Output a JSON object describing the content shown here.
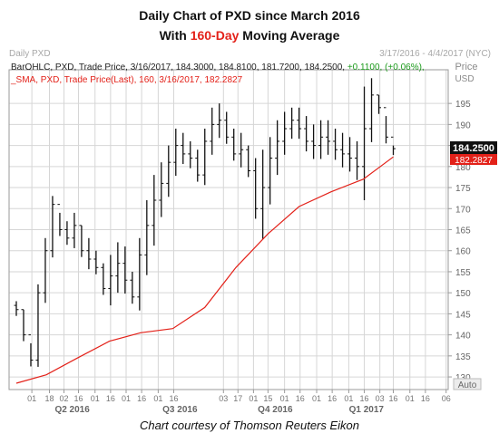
{
  "header": {
    "title_line1": "Daily Chart of PXD since March 2016",
    "title_line2_pre": "With ",
    "title_line2_highlight": "160-Day",
    "title_line2_post": " Moving Average"
  },
  "chart_header": {
    "left_label": "Daily PXD",
    "date_range": "3/17/2016 - 4/4/2017 (NYC)",
    "axis_caption": "Price",
    "axis_unit": "USD",
    "corner_label": "Auto"
  },
  "legend": {
    "ohlc_line": "BarOHLC, PXD, Trade Price, 3/16/2017, 184.3000, 184.8100, 181.7200, 184.2500,",
    "ohlc_change": "+0.1100, (+0.06%),",
    "sma_line": "_SMA, PXD, Trade Price(Last), 160, 3/16/2017, 182.2827"
  },
  "price_tags": {
    "last": "184.2500",
    "sma": "182.2827"
  },
  "caption": "Chart courtesy of Thomson Reuters Eikon",
  "colors": {
    "price_bars": "#111111",
    "sma_line": "#e32119",
    "grid": "#d6d6d6",
    "change_positive": "#1a9a1a",
    "title_highlight": "#e32119"
  },
  "chart_data": {
    "type": "line",
    "title": "Daily Chart of PXD since March 2016",
    "ylabel": "Price USD",
    "ylim": [
      127,
      203
    ],
    "y_ticks": [
      130,
      135,
      140,
      145,
      150,
      155,
      160,
      165,
      170,
      175,
      180,
      185,
      190,
      195
    ],
    "x_tick_labels": [
      "01",
      "18",
      "02",
      "16",
      "01",
      "16",
      "01",
      "16",
      "01",
      "16",
      "03",
      "17",
      "01",
      "15",
      "01",
      "16",
      "01",
      "16",
      "01",
      "16",
      "03",
      "16",
      "01",
      "16",
      "06"
    ],
    "x_tick_dates": [
      "2016-04-01",
      "2016-04-18",
      "2016-05-02",
      "2016-05-16",
      "2016-06-01",
      "2016-06-16",
      "2016-07-01",
      "2016-07-16",
      "2016-08-01",
      "2016-08-16",
      "2016-10-03",
      "2016-10-17",
      "2016-11-01",
      "2016-11-15",
      "2016-12-01",
      "2016-12-16",
      "2017-01-01",
      "2017-01-16",
      "2017-02-01",
      "2017-02-16",
      "2017-03-03",
      "2017-03-16",
      "2017-04-01",
      "2017-04-16",
      "2017-05-06"
    ],
    "period_labels": [
      "Q2 2016",
      "Q3 2016",
      "Q4 2016",
      "Q1 2017"
    ],
    "period_dates": [
      "2016-05-10",
      "2016-08-22",
      "2016-11-22",
      "2017-02-18"
    ],
    "grid": true,
    "series": [
      {
        "type": "ohlc",
        "x": [
          "2016-03-17",
          "2016-03-24",
          "2016-03-31",
          "2016-04-07",
          "2016-04-14",
          "2016-04-21",
          "2016-04-28",
          "2016-05-05",
          "2016-05-12",
          "2016-05-19",
          "2016-05-26",
          "2016-06-02",
          "2016-06-09",
          "2016-06-16",
          "2016-06-23",
          "2016-06-30",
          "2016-07-07",
          "2016-07-14",
          "2016-07-21",
          "2016-07-28",
          "2016-08-04",
          "2016-08-11",
          "2016-08-18",
          "2016-08-25",
          "2016-09-01",
          "2016-09-08",
          "2016-09-15",
          "2016-09-22",
          "2016-09-29",
          "2016-10-06",
          "2016-10-13",
          "2016-10-20",
          "2016-10-27",
          "2016-11-03",
          "2016-11-10",
          "2016-11-17",
          "2016-11-24",
          "2016-12-01",
          "2016-12-08",
          "2016-12-15",
          "2016-12-22",
          "2016-12-29",
          "2017-01-05",
          "2017-01-12",
          "2017-01-19",
          "2017-01-26",
          "2017-02-02",
          "2017-02-09",
          "2017-02-16",
          "2017-02-23",
          "2017-03-02",
          "2017-03-09",
          "2017-03-16"
        ],
        "close": [
          146,
          140,
          134,
          150,
          160,
          171,
          165,
          163,
          166,
          160,
          158,
          156,
          151,
          154,
          157,
          153,
          149,
          159,
          166,
          172,
          176,
          181,
          185,
          183,
          182,
          178,
          186,
          190,
          191,
          187,
          183,
          184,
          179,
          170,
          175,
          182,
          186,
          189,
          191,
          189,
          186,
          185,
          187,
          186,
          184,
          183,
          182,
          180,
          189,
          197,
          194,
          187,
          184.25
        ],
        "high": [
          148,
          146,
          138,
          152,
          163,
          173,
          169,
          167,
          169,
          166,
          163,
          160,
          157,
          159,
          162,
          161,
          155,
          163,
          172,
          178,
          181,
          185,
          189,
          188,
          186,
          184,
          189,
          194,
          195,
          193,
          189,
          188,
          185,
          182,
          184,
          187,
          191,
          193,
          194,
          194,
          192,
          190,
          191,
          191,
          189,
          188,
          187,
          186,
          199,
          201,
          197,
          192,
          185
        ]
      },
      {
        "name": "SMA 160",
        "x": [
          "2016-03-17",
          "2016-04-15",
          "2016-05-15",
          "2016-06-15",
          "2016-07-15",
          "2016-08-15",
          "2016-09-15",
          "2016-10-15",
          "2016-11-15",
          "2016-12-15",
          "2017-01-15",
          "2017-02-15",
          "2017-03-16"
        ],
        "values": [
          128.5,
          130.5,
          134.5,
          138.5,
          140.5,
          141.5,
          146.5,
          156,
          164,
          170.5,
          174,
          177,
          182.28
        ]
      }
    ]
  }
}
